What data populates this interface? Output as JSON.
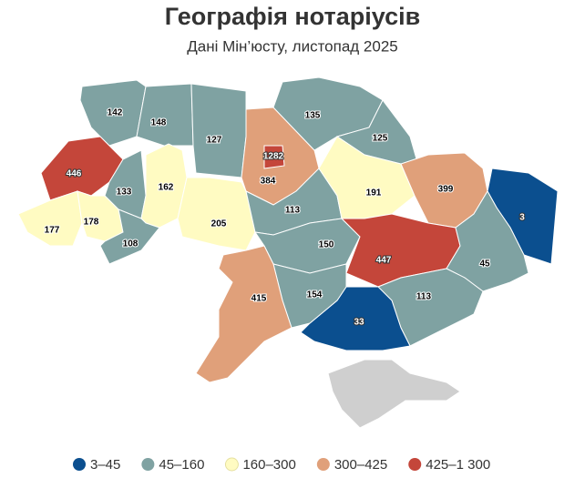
{
  "title": "Географія нотаріусів",
  "subtitle": "Дані Мін’юсту, листопад 2025",
  "regions": [
    {
      "value": 142,
      "color": "#7fa2a2"
    },
    {
      "value": 148,
      "color": "#7fa2a2"
    },
    {
      "value": 127,
      "color": "#7fa2a2"
    },
    {
      "value": 384,
      "color": "#e0a07a"
    },
    {
      "value": 1282,
      "color": "#c4463a"
    },
    {
      "value": 135,
      "color": "#7fa2a2"
    },
    {
      "value": 125,
      "color": "#7fa2a2"
    },
    {
      "value": 446,
      "color": "#c4463a"
    },
    {
      "value": 133,
      "color": "#7fa2a2"
    },
    {
      "value": 162,
      "color": "#fffbc2"
    },
    {
      "value": 205,
      "color": "#fffbc2"
    },
    {
      "value": 177,
      "color": "#fffbc2"
    },
    {
      "value": 178,
      "color": "#fffbc2"
    },
    {
      "value": 108,
      "color": "#7fa2a2"
    },
    {
      "value": 113,
      "color": "#7fa2a2"
    },
    {
      "value": 191,
      "color": "#fffbc2"
    },
    {
      "value": 399,
      "color": "#e0a07a"
    },
    {
      "value": 3,
      "color": "#0b4f8f"
    },
    {
      "value": 150,
      "color": "#7fa2a2"
    },
    {
      "value": 447,
      "color": "#c4463a"
    },
    {
      "value": 45,
      "color": "#7fa2a2"
    },
    {
      "value": 113,
      "color": "#7fa2a2"
    },
    {
      "value": 33,
      "color": "#0b4f8f"
    },
    {
      "value": 154,
      "color": "#7fa2a2"
    },
    {
      "value": 415,
      "color": "#e0a07a"
    }
  ],
  "legend": [
    {
      "label": "3–45",
      "color": "#0b4f8f"
    },
    {
      "label": "45–160",
      "color": "#7fa2a2"
    },
    {
      "label": "160–300",
      "color": "#fffbc2"
    },
    {
      "label": "300–425",
      "color": "#e0a07a"
    },
    {
      "label": "425–1 300",
      "color": "#c4463a"
    }
  ]
}
